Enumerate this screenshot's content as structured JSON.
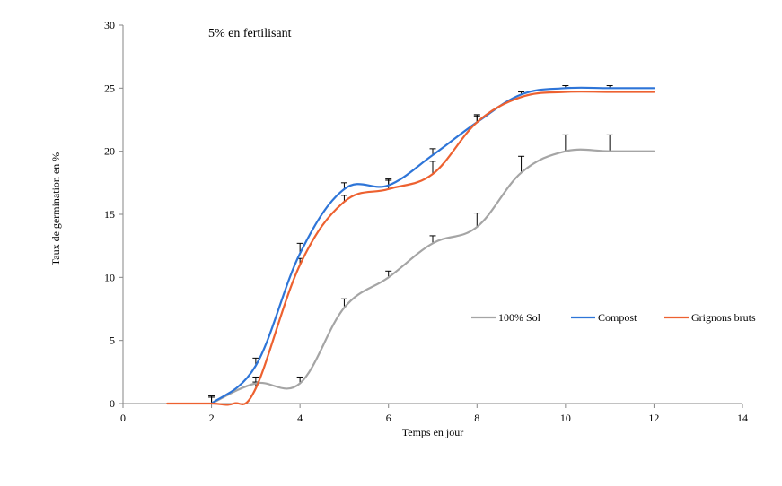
{
  "chart_data": {
    "type": "line",
    "title": "5% en fertilisant",
    "xlabel": "Temps en jour",
    "ylabel": "Taux de germination en %",
    "xlim": [
      0,
      14
    ],
    "ylim": [
      0,
      30
    ],
    "xticks": [
      0,
      2,
      4,
      6,
      8,
      10,
      12,
      14
    ],
    "yticks": [
      0,
      5,
      10,
      15,
      20,
      25,
      30
    ],
    "grid": false,
    "legend_position": "right",
    "series": [
      {
        "name": "100% Sol",
        "color": "#a5a5a5",
        "x": [
          2,
          3,
          4,
          5,
          6,
          7,
          8,
          9,
          10,
          11,
          12
        ],
        "y": [
          0,
          1.6,
          1.6,
          7.6,
          10,
          12.7,
          14,
          18.3,
          20,
          20,
          20
        ],
        "err": [
          0.5,
          0.5,
          0.5,
          0.7,
          0.5,
          0.6,
          1.1,
          1.3,
          1.3,
          1.3,
          null
        ]
      },
      {
        "name": "Compost",
        "color": "#2e75d8",
        "x": [
          2,
          3,
          4,
          5,
          6,
          7,
          8,
          9,
          10,
          11,
          12
        ],
        "y": [
          0,
          3,
          11.9,
          17,
          17.3,
          19.7,
          22.3,
          24.5,
          25,
          25,
          25
        ],
        "err": [
          0.6,
          0.6,
          0.8,
          0.5,
          0.5,
          0.5,
          0.5,
          0.2,
          0.2,
          0.2,
          null
        ]
      },
      {
        "name": "Grignons bruts",
        "color": "#ed6130",
        "x": [
          1,
          2,
          2.5,
          3,
          4,
          5,
          6,
          7,
          8,
          9,
          10,
          11,
          12
        ],
        "y": [
          0,
          0,
          0,
          1.2,
          11,
          16,
          17,
          18.2,
          22.3,
          24.3,
          24.7,
          24.7,
          24.7
        ],
        "err": [
          null,
          null,
          null,
          0.5,
          0.5,
          0.5,
          0.7,
          1.0,
          0.6,
          null,
          null,
          null,
          null
        ]
      }
    ]
  }
}
